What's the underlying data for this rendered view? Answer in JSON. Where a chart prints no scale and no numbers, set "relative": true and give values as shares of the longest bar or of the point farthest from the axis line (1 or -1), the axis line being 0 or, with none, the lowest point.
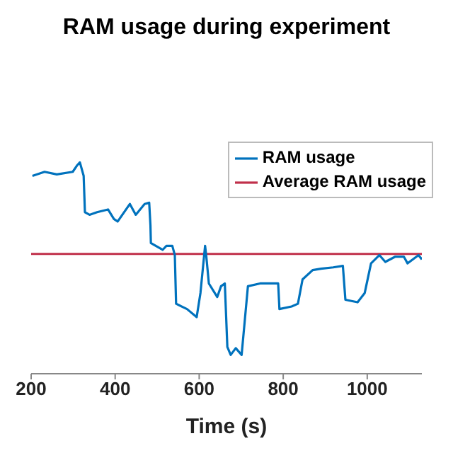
{
  "chart_data": {
    "type": "line",
    "title": "RAM usage during experiment",
    "xlabel": "Time (s)",
    "relative": true,
    "x": [
      203,
      232,
      261,
      299,
      310,
      316,
      325,
      328,
      339,
      357,
      383,
      397,
      406,
      435,
      449,
      470,
      481,
      484,
      485,
      513,
      522,
      536,
      542,
      545,
      571,
      594,
      603,
      614,
      617,
      623,
      643,
      652,
      661,
      667,
      675,
      687,
      701,
      716,
      745,
      768,
      788,
      791,
      820,
      835,
      846,
      870,
      890,
      919,
      942,
      948,
      977,
      994,
      1009,
      1029,
      1043,
      1067,
      1087,
      1096,
      1122,
      1130
    ],
    "series": [
      {
        "name": "RAM usage",
        "color": "#0072bd",
        "values": [
          0.936,
          0.955,
          0.943,
          0.955,
          0.987,
          1,
          0.936,
          0.764,
          0.752,
          0.764,
          0.777,
          0.732,
          0.72,
          0.803,
          0.752,
          0.803,
          0.809,
          0.701,
          0.618,
          0.586,
          0.605,
          0.605,
          0.561,
          0.331,
          0.306,
          0.268,
          0.382,
          0.605,
          0.554,
          0.427,
          0.363,
          0.414,
          0.427,
          0.127,
          0.089,
          0.121,
          0.089,
          0.414,
          0.427,
          0.427,
          0.427,
          0.306,
          0.318,
          0.331,
          0.446,
          0.49,
          0.497,
          0.503,
          0.51,
          0.35,
          0.338,
          0.382,
          0.522,
          0.561,
          0.529,
          0.554,
          0.554,
          0.522,
          0.561,
          0.541
        ]
      }
    ],
    "ref_lines": [
      {
        "axis": "y",
        "value": 0.567,
        "label": "Average RAM usage",
        "color": "#c0304a"
      }
    ],
    "xlim": [
      200,
      1130
    ],
    "xticks": [
      200,
      400,
      600,
      800,
      1000
    ],
    "legend": "top right",
    "marker": "none",
    "line_style": "solid"
  }
}
